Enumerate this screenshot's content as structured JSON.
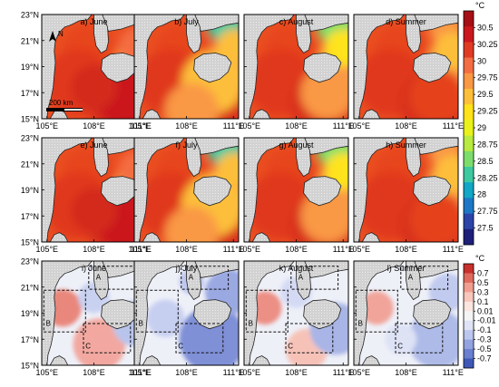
{
  "chart_data": {
    "type": "heatmap",
    "rows": [
      {
        "panels": [
          "a) June",
          "b) July",
          "c) August",
          "d) Summer"
        ]
      },
      {
        "panels": [
          "e) June",
          "f) July",
          "g) August",
          "h) Summer"
        ]
      },
      {
        "panels": [
          "i) June",
          "j) July",
          "k) August",
          "l) Summer"
        ]
      }
    ],
    "x_ticks": [
      "105°E",
      "108°E",
      "111°E"
    ],
    "y_ticks": [
      "15°N",
      "17°N",
      "19°N",
      "21°N",
      "23°N"
    ],
    "scale_bar": "200 km",
    "north_arrow": "N",
    "region_labels": [
      "A",
      "B",
      "C"
    ],
    "colorbars": [
      {
        "unit": "°C",
        "labels": [
          "30.5",
          "30.25",
          "30",
          "29.75",
          "29.5",
          "29.25",
          "29",
          "28.75",
          "28.5",
          "28.25",
          "28",
          "27.75",
          "27.5"
        ],
        "colors": [
          "#a50f15",
          "#cb181d",
          "#e03b22",
          "#f46d43",
          "#f99845",
          "#fdbf3a",
          "#ffe31a",
          "#e8f21a",
          "#b8ea40",
          "#7ddd6c",
          "#3fc9a0",
          "#12a7c6",
          "#1c78c6",
          "#2c44a8",
          "#1d1f78"
        ]
      },
      {
        "unit": "°C",
        "labels": [
          "0.7",
          "0.5",
          "0.3",
          "0.1",
          "0.01",
          "-0.01",
          "-0.1",
          "-0.3",
          "-0.5",
          "-0.7"
        ],
        "colors": [
          "#c8312c",
          "#e06a5e",
          "#f19e90",
          "#f8c6bb",
          "#fbe5df",
          "#f4f4f4",
          "#dfe3f5",
          "#bcc6ee",
          "#93a3e0",
          "#6a7fd0",
          "#3f58b8"
        ]
      }
    ],
    "colors": {
      "land": "#d6d6d6",
      "frame": "#000000"
    }
  }
}
